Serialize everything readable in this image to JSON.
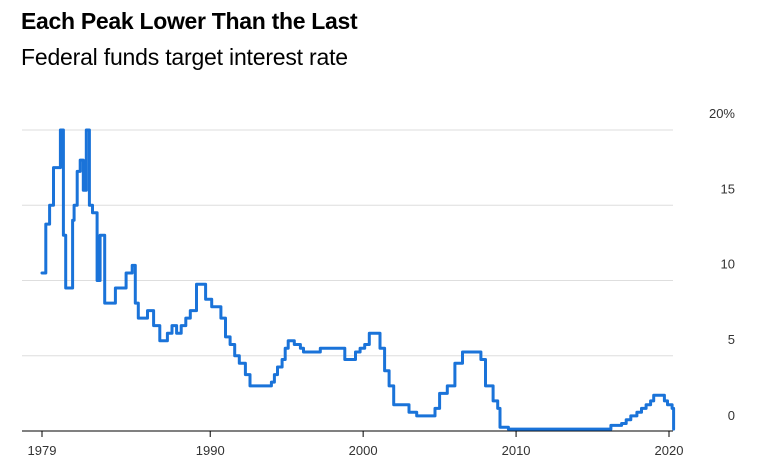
{
  "header": {
    "title": "Each Peak Lower Than the Last",
    "subtitle": "Federal funds target interest rate"
  },
  "chart_data": {
    "type": "line",
    "title": "Each Peak Lower Than the Last",
    "subtitle": "Federal funds target interest rate",
    "xlabel": "",
    "ylabel": "",
    "xlim": [
      1979,
      2021.5
    ],
    "ylim": [
      0,
      20
    ],
    "x_ticks": [
      "1979",
      "1990",
      "2000",
      "2010",
      "2020"
    ],
    "x_tick_values": [
      1979,
      1990,
      2000,
      2010,
      2020
    ],
    "y_ticks": [
      "20%",
      "15",
      "10",
      "5",
      "0"
    ],
    "y_tick_values": [
      20,
      15,
      10,
      5,
      0
    ],
    "y_axis_side": "right",
    "grid": true,
    "line_color": "#1a73d9",
    "series": [
      {
        "x": [
          1979.0,
          1979.25,
          1979.5,
          1979.75,
          1979.9,
          1980.2,
          1980.4,
          1980.55,
          1980.7,
          1981.0,
          1981.1,
          1981.3,
          1981.5,
          1981.7,
          1981.9,
          1982.1,
          1982.3,
          1982.5,
          1982.6,
          1982.8,
          1983.1,
          1983.4,
          1983.8,
          1984.2,
          1984.5,
          1984.9,
          1985.1,
          1985.3,
          1985.6,
          1985.9,
          1986.3,
          1986.7,
          1987.2,
          1987.5,
          1987.8,
          1988.1,
          1988.4,
          1988.7,
          1989.1,
          1989.4,
          1989.7,
          1990.1,
          1990.4,
          1990.7,
          1991.0,
          1991.3,
          1991.6,
          1991.9,
          1992.3,
          1992.6,
          1993.0,
          1993.5,
          1994.0,
          1994.2,
          1994.4,
          1994.7,
          1994.9,
          1995.1,
          1995.5,
          1995.9,
          1996.1,
          1997.0,
          1997.2,
          1998.5,
          1998.8,
          1999.2,
          1999.5,
          1999.8,
          2000.1,
          2000.4,
          2000.8,
          2001.1,
          2001.4,
          2001.7,
          2002.0,
          2002.5,
          2003.0,
          2003.5,
          2004.4,
          2004.7,
          2005.0,
          2005.5,
          2006.0,
          2006.5,
          2006.9,
          2007.4,
          2007.7,
          2008.0,
          2008.2,
          2008.5,
          2008.8,
          2008.95,
          2009.5,
          2014.0,
          2015.95,
          2016.2,
          2016.9,
          2017.2,
          2017.5,
          2017.9,
          2018.2,
          2018.5,
          2018.8,
          2019.0,
          2019.5,
          2019.7,
          2019.9,
          2020.2,
          2020.3
        ],
        "values": [
          10.5,
          13.75,
          15.0,
          17.5,
          17.5,
          20.0,
          13.0,
          9.5,
          9.5,
          14.0,
          15.0,
          17.25,
          18.0,
          16.0,
          20.0,
          15.0,
          14.5,
          14.5,
          10.0,
          13.0,
          8.5,
          8.5,
          9.5,
          9.5,
          10.5,
          11.0,
          8.5,
          7.5,
          7.5,
          8.0,
          7.0,
          6.0,
          6.5,
          7.0,
          6.5,
          7.0,
          7.5,
          8.0,
          9.75,
          9.75,
          8.75,
          8.25,
          8.25,
          7.5,
          6.25,
          5.75,
          5.0,
          4.5,
          3.75,
          3.0,
          3.0,
          3.0,
          3.25,
          3.75,
          4.25,
          4.75,
          5.5,
          6.0,
          5.75,
          5.5,
          5.25,
          5.25,
          5.5,
          5.5,
          4.75,
          4.75,
          5.25,
          5.5,
          5.75,
          6.5,
          6.5,
          5.5,
          4.0,
          3.0,
          1.75,
          1.75,
          1.25,
          1.0,
          1.0,
          1.5,
          2.5,
          3.0,
          4.5,
          5.25,
          5.25,
          5.25,
          4.75,
          3.0,
          3.0,
          2.0,
          1.5,
          0.25,
          0.125,
          0.125,
          0.125,
          0.375,
          0.5,
          0.75,
          1.0,
          1.25,
          1.5,
          1.75,
          2.0,
          2.375,
          2.375,
          2.0,
          1.75,
          1.5,
          0.125
        ]
      }
    ]
  }
}
